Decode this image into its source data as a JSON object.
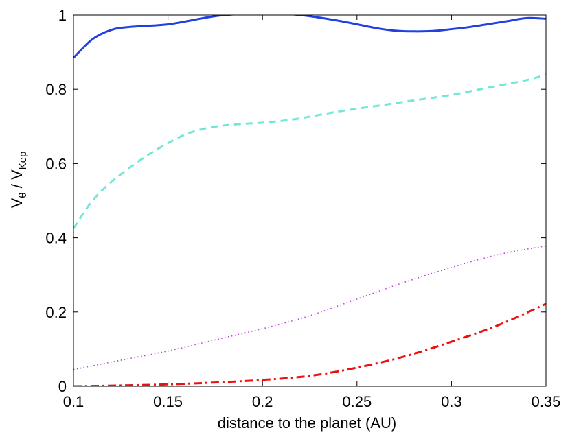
{
  "chart_data": {
    "type": "line",
    "xlabel": "distance to the planet (AU)",
    "ylabel": {
      "main_v": "V",
      "sub_theta": "θ",
      "slash": " / V",
      "sub_kep": "Kep"
    },
    "xlim": [
      0.1,
      0.35
    ],
    "ylim": [
      0,
      1
    ],
    "xticks": [
      "0.1",
      "0.15",
      "0.2",
      "0.25",
      "0.3",
      "0.35"
    ],
    "yticks": [
      "0",
      "0.2",
      "0.4",
      "0.6",
      "0.8",
      "1"
    ],
    "grid": false,
    "series": [
      {
        "style": "solid",
        "color": "#2040e0",
        "x": [
          0.1,
          0.11,
          0.12,
          0.13,
          0.15,
          0.17,
          0.18,
          0.2,
          0.22,
          0.24,
          0.26,
          0.27,
          0.28,
          0.29,
          0.3,
          0.31,
          0.32,
          0.33,
          0.34,
          0.35
        ],
        "y": [
          0.885,
          0.935,
          0.96,
          0.968,
          0.975,
          0.993,
          1.0,
          1.005,
          1.0,
          0.985,
          0.965,
          0.958,
          0.956,
          0.957,
          0.962,
          0.968,
          0.976,
          0.984,
          0.992,
          0.99
        ]
      },
      {
        "style": "dashed",
        "color": "#70e8d8",
        "x": [
          0.1,
          0.11,
          0.12,
          0.13,
          0.14,
          0.15,
          0.16,
          0.17,
          0.18,
          0.19,
          0.2,
          0.21,
          0.22,
          0.24,
          0.26,
          0.28,
          0.3,
          0.32,
          0.34,
          0.35
        ],
        "y": [
          0.425,
          0.5,
          0.55,
          0.59,
          0.625,
          0.655,
          0.68,
          0.695,
          0.703,
          0.707,
          0.71,
          0.715,
          0.722,
          0.74,
          0.755,
          0.77,
          0.785,
          0.805,
          0.825,
          0.84
        ]
      },
      {
        "style": "dotted",
        "color": "#c040e0",
        "x": [
          0.1,
          0.125,
          0.15,
          0.175,
          0.2,
          0.225,
          0.25,
          0.275,
          0.3,
          0.325,
          0.35
        ],
        "y": [
          0.045,
          0.07,
          0.095,
          0.125,
          0.155,
          0.19,
          0.235,
          0.28,
          0.32,
          0.355,
          0.378
        ]
      },
      {
        "style": "dashdot",
        "color": "#ee1010",
        "x": [
          0.1,
          0.125,
          0.15,
          0.175,
          0.2,
          0.225,
          0.25,
          0.275,
          0.3,
          0.325,
          0.35
        ],
        "y": [
          0.0,
          0.002,
          0.005,
          0.01,
          0.017,
          0.028,
          0.05,
          0.08,
          0.12,
          0.165,
          0.222
        ]
      }
    ]
  }
}
